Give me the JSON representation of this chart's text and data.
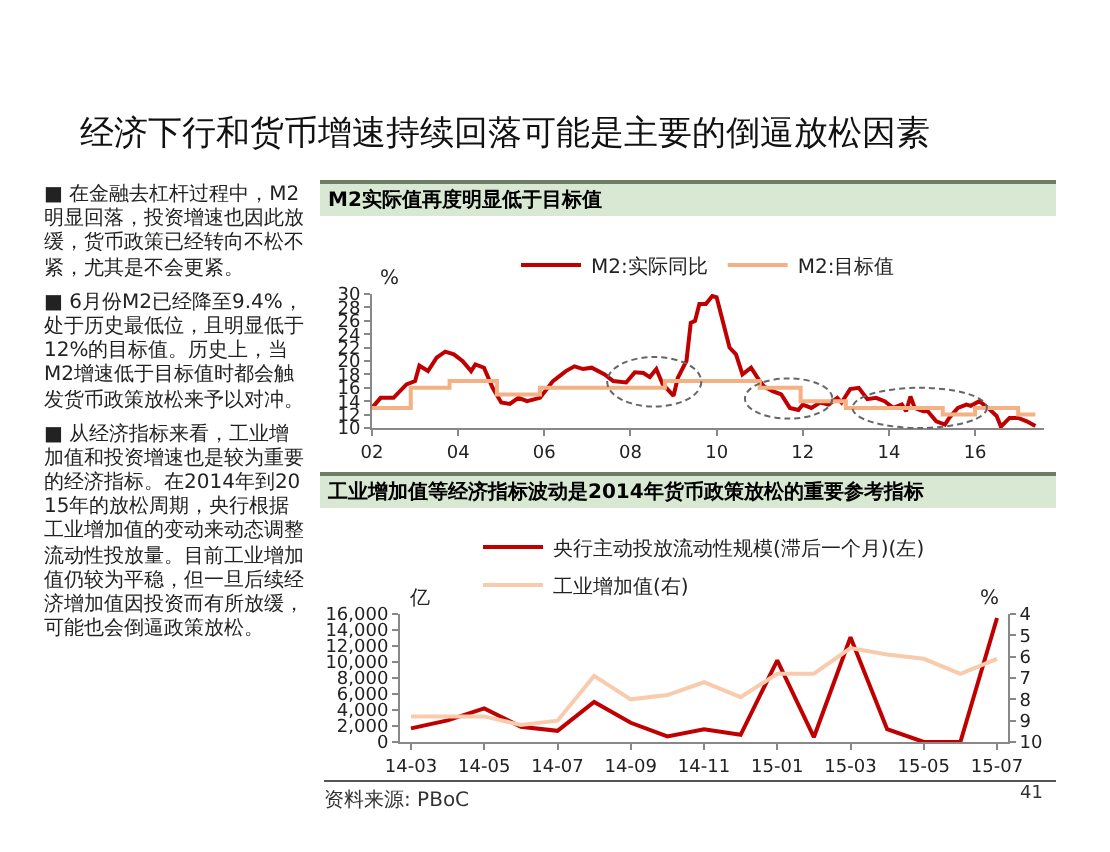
{
  "chart_data": [
    {
      "type": "other",
      "title": "经济下行和货币增速持续回落可能是主要的倒逼放松因素",
      "annotations": [
        "■ 在金融去杠杆过程中，M2明显回落，投资增速也因此放缓，货币政策已经转向不松不紧，尤其是不会更紧。",
        "■ 6月份M2已经降至9.4%，处于历史最低位，且明显低于12%的目标值。历史上，当M2增速低于目标值时都会触发货币政策放松来予以对冲。",
        "■ 从经济指标来看，工业增加值和投资增速也是较为重要的经济指标。在2014年到2015年的放松周期，央行根据工业增加值的变动来动态调整流动性投放量。目前工业增加值仍较为平稳，但一旦后续经济增加值因投资而有所放缓，可能也会倒逼政策放松。",
        "41"
      ]
    },
    {
      "type": "line",
      "title": "M2实际值再度明显低于目标值",
      "ylabel": "%",
      "legend": "top",
      "xlim": [
        2002,
        2017.6
      ],
      "ylim": [
        10,
        30
      ],
      "xticks": [
        {
          "value": 2002,
          "label": "02"
        },
        {
          "value": 2004,
          "label": "04"
        },
        {
          "value": 2006,
          "label": "06"
        },
        {
          "value": 2008,
          "label": "08"
        },
        {
          "value": 2010,
          "label": "10"
        },
        {
          "value": 2012,
          "label": "12"
        },
        {
          "value": 2014,
          "label": "14"
        },
        {
          "value": 2016,
          "label": "16"
        }
      ],
      "yticks": [
        10,
        12,
        14,
        16,
        18,
        20,
        22,
        24,
        26,
        28,
        30
      ],
      "series": [
        {
          "name": "M2:实际同比",
          "color": "#c00000",
          "x": [
            2002.0,
            2002.2,
            2002.5,
            2002.8,
            2003.0,
            2003.1,
            2003.3,
            2003.5,
            2003.7,
            2003.9,
            2004.1,
            2004.3,
            2004.4,
            2004.6,
            2004.8,
            2005.0,
            2005.2,
            2005.4,
            2005.6,
            2005.9,
            2006.2,
            2006.5,
            2006.7,
            2006.9,
            2007.1,
            2007.4,
            2007.6,
            2007.9,
            2008.1,
            2008.3,
            2008.45,
            2008.6,
            2008.75,
            2008.9,
            2009.0,
            2009.1,
            2009.3,
            2009.4,
            2009.5,
            2009.6,
            2009.75,
            2009.9,
            2010.0,
            2010.1,
            2010.3,
            2010.45,
            2010.6,
            2010.8,
            2011.0,
            2011.1,
            2011.3,
            2011.5,
            2011.7,
            2011.9,
            2012.0,
            2012.2,
            2012.4,
            2012.6,
            2012.8,
            2012.9,
            2013.1,
            2013.3,
            2013.5,
            2013.7,
            2013.9,
            2014.1,
            2014.3,
            2014.4,
            2014.5,
            2014.6,
            2014.8,
            2014.9,
            2015.1,
            2015.3,
            2015.4,
            2015.6,
            2015.8,
            2015.9,
            2016.1,
            2016.3,
            2016.5,
            2016.6,
            2016.8,
            2017.0,
            2017.2,
            2017.4
          ],
          "values": [
            13,
            14.5,
            14.5,
            16.5,
            17,
            19.3,
            18.5,
            20.5,
            21.4,
            21,
            20,
            18.5,
            19.5,
            19,
            16,
            13.8,
            13.6,
            14.5,
            14,
            14.5,
            17,
            18.5,
            19.2,
            18.8,
            19,
            18,
            17,
            16.8,
            18.3,
            18.2,
            17.6,
            18.8,
            16.5,
            15.5,
            14.8,
            17.5,
            20,
            25.7,
            26,
            28.5,
            28.5,
            29.7,
            29.5,
            27,
            22,
            21,
            18,
            19,
            17,
            16.2,
            15.5,
            15,
            13,
            12.7,
            13.5,
            13,
            13.8,
            13.5,
            14.5,
            13.8,
            15.8,
            16,
            14.3,
            14.5,
            14,
            13,
            13.5,
            12.5,
            14.7,
            13,
            12.5,
            12.5,
            11,
            10.5,
            11.5,
            13,
            13.5,
            13.3,
            14,
            13,
            11.8,
            10.2,
            11.5,
            11.5,
            11,
            10.3
          ]
        },
        {
          "name": "M2:目标值",
          "type": "step",
          "color": "#f4b183",
          "x": [
            2002,
            2002.9,
            2003.8,
            2004.9,
            2005.9,
            2008.8,
            2011.0,
            2011.95,
            2013.0,
            2015.25,
            2016.0,
            2017.0,
            2017.4
          ],
          "values": [
            13,
            16,
            17,
            15,
            16,
            17,
            16,
            14,
            13,
            12,
            13,
            12,
            12
          ]
        }
      ]
    },
    {
      "type": "line",
      "title": "工业增加值等经济指标波动是2014年货币政策放松的重要参考指标",
      "ylabel": "亿",
      "y2label": "%",
      "legend": "top",
      "categories": [
        "14-03",
        null,
        "14-05",
        null,
        "14-07",
        null,
        "14-09",
        null,
        "14-11",
        null,
        "15-01",
        null,
        "15-03",
        null,
        "15-05",
        null,
        "15-07"
      ],
      "ylim": [
        0,
        16000
      ],
      "yticks": [
        0,
        {
          "value": 2000,
          "label": "2,000"
        },
        {
          "value": 4000,
          "label": "4,000"
        },
        {
          "value": 6000,
          "label": "6,000"
        },
        {
          "value": 8000,
          "label": "8,000"
        },
        {
          "value": 10000,
          "label": "10,000"
        },
        {
          "value": 12000,
          "label": "12,000"
        },
        {
          "value": 14000,
          "label": "14,000"
        },
        {
          "value": 16000,
          "label": "16,000"
        }
      ],
      "y2lim": [
        10,
        4
      ],
      "y2ticks": [
        4,
        5,
        6,
        7,
        8,
        9,
        10
      ],
      "annotations": [
        "资料来源: PBoC"
      ],
      "series": [
        {
          "name": "央行主动投放流动性规模(滞后一个月)(左)",
          "color": "#c00000",
          "values": [
            1700,
            2700,
            4200,
            1900,
            1400,
            5000,
            2400,
            700,
            1600,
            900,
            10200,
            600,
            13100,
            1600,
            0,
            0,
            15500
          ]
        },
        {
          "name": "工业增加值(右)",
          "color": "#f8cbad",
          "axis": "y2",
          "values": [
            8.8,
            8.8,
            8.8,
            9.2,
            9.0,
            6.9,
            8.0,
            7.8,
            7.2,
            7.9,
            6.8,
            6.8,
            5.6,
            5.9,
            6.1,
            6.8,
            6.1
          ]
        }
      ]
    }
  ]
}
